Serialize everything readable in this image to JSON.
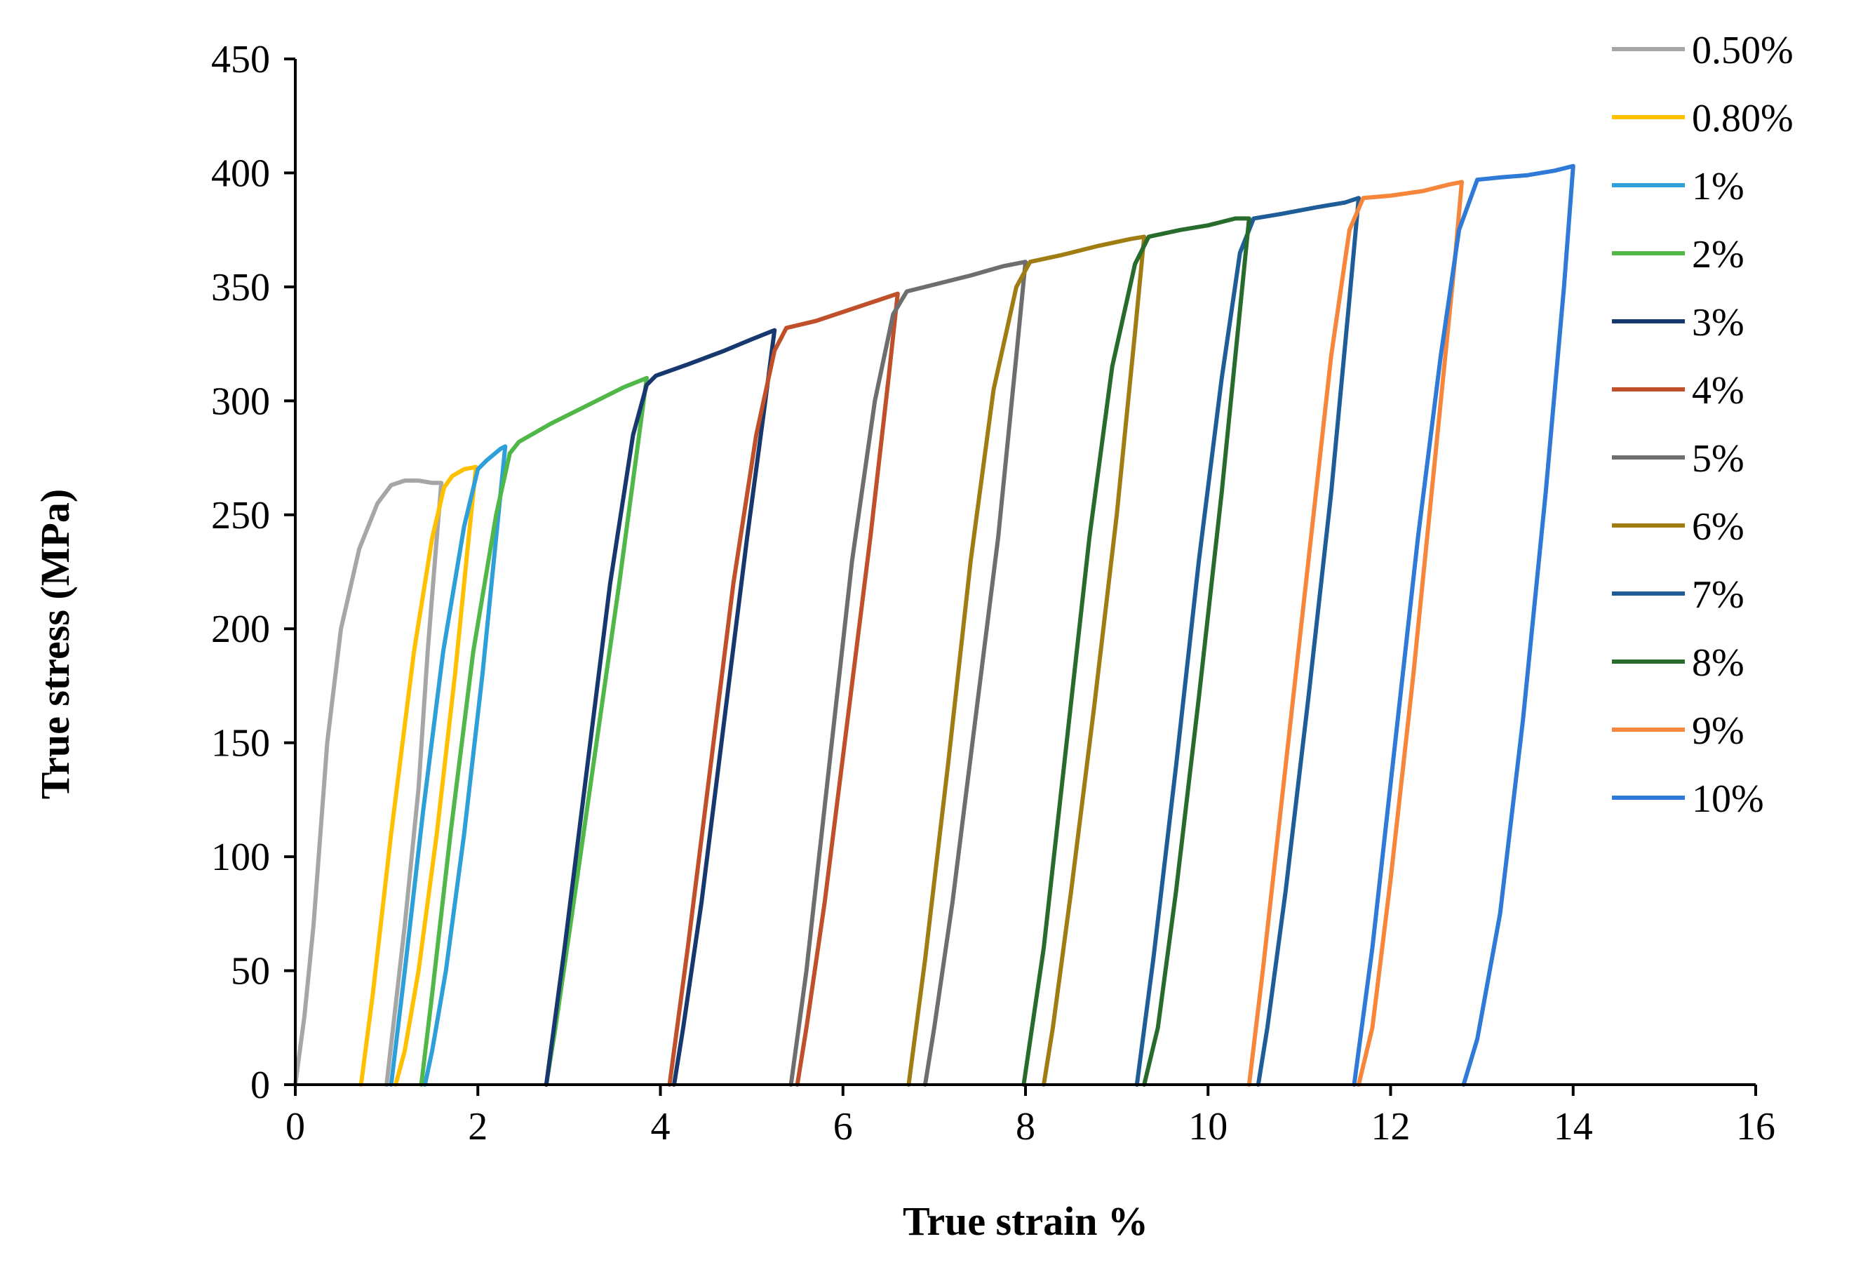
{
  "chart_data": {
    "type": "line",
    "title": "",
    "xlabel": "True strain %",
    "ylabel": "True stress (MPa)",
    "xlim": [
      0,
      16
    ],
    "ylim": [
      0,
      450
    ],
    "xticks": [
      "0",
      "2",
      "4",
      "6",
      "8",
      "10",
      "12",
      "14",
      "16"
    ],
    "yticks": [
      "0",
      "50",
      "100",
      "150",
      "200",
      "250",
      "300",
      "350",
      "400",
      "450"
    ],
    "grid": false,
    "legend_position": "right",
    "series": [
      {
        "name": "0.50%",
        "color": "#a6a6a6",
        "points": [
          [
            0.0,
            0
          ],
          [
            0.1,
            30
          ],
          [
            0.2,
            70
          ],
          [
            0.35,
            150
          ],
          [
            0.5,
            200
          ],
          [
            0.7,
            235
          ],
          [
            0.9,
            255
          ],
          [
            1.05,
            263
          ],
          [
            1.2,
            265
          ],
          [
            1.35,
            265
          ],
          [
            1.5,
            264
          ],
          [
            1.6,
            264
          ],
          [
            1.55,
            240
          ],
          [
            1.45,
            190
          ],
          [
            1.35,
            130
          ],
          [
            1.2,
            70
          ],
          [
            1.1,
            35
          ],
          [
            1.0,
            0
          ]
        ]
      },
      {
        "name": "0.80%",
        "color": "#ffc000",
        "points": [
          [
            0.72,
            0
          ],
          [
            0.85,
            40
          ],
          [
            1.05,
            110
          ],
          [
            1.3,
            190
          ],
          [
            1.5,
            240
          ],
          [
            1.63,
            262
          ],
          [
            1.72,
            267
          ],
          [
            1.85,
            270
          ],
          [
            1.98,
            271
          ],
          [
            1.9,
            240
          ],
          [
            1.75,
            180
          ],
          [
            1.55,
            110
          ],
          [
            1.35,
            50
          ],
          [
            1.2,
            15
          ],
          [
            1.1,
            0
          ]
        ]
      },
      {
        "name": "1%",
        "color": "#2e9fd8",
        "points": [
          [
            1.05,
            0
          ],
          [
            1.2,
            50
          ],
          [
            1.4,
            120
          ],
          [
            1.62,
            190
          ],
          [
            1.85,
            245
          ],
          [
            2.0,
            270
          ],
          [
            2.1,
            274
          ],
          [
            2.25,
            279
          ],
          [
            2.3,
            280
          ],
          [
            2.2,
            240
          ],
          [
            2.05,
            180
          ],
          [
            1.85,
            110
          ],
          [
            1.65,
            50
          ],
          [
            1.5,
            15
          ],
          [
            1.42,
            0
          ]
        ]
      },
      {
        "name": "2%",
        "color": "#4fb848",
        "points": [
          [
            1.38,
            0
          ],
          [
            1.5,
            40
          ],
          [
            1.7,
            110
          ],
          [
            1.95,
            190
          ],
          [
            2.2,
            250
          ],
          [
            2.35,
            277
          ],
          [
            2.45,
            282
          ],
          [
            2.8,
            290
          ],
          [
            3.2,
            298
          ],
          [
            3.6,
            306
          ],
          [
            3.85,
            310
          ],
          [
            3.75,
            280
          ],
          [
            3.55,
            220
          ],
          [
            3.3,
            150
          ],
          [
            3.05,
            80
          ],
          [
            2.85,
            25
          ],
          [
            2.75,
            0
          ]
        ]
      },
      {
        "name": "3%",
        "color": "#17386f",
        "points": [
          [
            2.75,
            0
          ],
          [
            2.95,
            60
          ],
          [
            3.2,
            140
          ],
          [
            3.45,
            220
          ],
          [
            3.7,
            285
          ],
          [
            3.85,
            307
          ],
          [
            3.95,
            311
          ],
          [
            4.3,
            316
          ],
          [
            4.7,
            322
          ],
          [
            5.0,
            327
          ],
          [
            5.25,
            331
          ],
          [
            5.15,
            300
          ],
          [
            4.95,
            240
          ],
          [
            4.7,
            160
          ],
          [
            4.45,
            80
          ],
          [
            4.25,
            25
          ],
          [
            4.15,
            0
          ]
        ]
      },
      {
        "name": "4%",
        "color": "#c0502a",
        "points": [
          [
            4.1,
            0
          ],
          [
            4.3,
            60
          ],
          [
            4.55,
            140
          ],
          [
            4.8,
            220
          ],
          [
            5.05,
            285
          ],
          [
            5.25,
            322
          ],
          [
            5.38,
            332
          ],
          [
            5.7,
            335
          ],
          [
            6.0,
            339
          ],
          [
            6.3,
            343
          ],
          [
            6.6,
            347
          ],
          [
            6.5,
            310
          ],
          [
            6.3,
            240
          ],
          [
            6.05,
            160
          ],
          [
            5.8,
            80
          ],
          [
            5.6,
            25
          ],
          [
            5.5,
            0
          ]
        ]
      },
      {
        "name": "5%",
        "color": "#6e6e6e",
        "points": [
          [
            5.43,
            0
          ],
          [
            5.6,
            50
          ],
          [
            5.85,
            140
          ],
          [
            6.1,
            230
          ],
          [
            6.35,
            300
          ],
          [
            6.55,
            338
          ],
          [
            6.7,
            348
          ],
          [
            7.0,
            351
          ],
          [
            7.4,
            355
          ],
          [
            7.75,
            359
          ],
          [
            8.0,
            361
          ],
          [
            7.9,
            320
          ],
          [
            7.7,
            240
          ],
          [
            7.45,
            160
          ],
          [
            7.2,
            80
          ],
          [
            7.0,
            25
          ],
          [
            6.9,
            0
          ]
        ]
      },
      {
        "name": "6%",
        "color": "#a07d12",
        "points": [
          [
            6.72,
            0
          ],
          [
            6.9,
            55
          ],
          [
            7.15,
            140
          ],
          [
            7.4,
            230
          ],
          [
            7.65,
            305
          ],
          [
            7.9,
            350
          ],
          [
            8.05,
            361
          ],
          [
            8.4,
            364
          ],
          [
            8.8,
            368
          ],
          [
            9.15,
            371
          ],
          [
            9.3,
            372
          ],
          [
            9.2,
            330
          ],
          [
            9.0,
            250
          ],
          [
            8.75,
            165
          ],
          [
            8.5,
            85
          ],
          [
            8.3,
            25
          ],
          [
            8.2,
            0
          ]
        ]
      },
      {
        "name": "7%",
        "color": "#1f5d99",
        "points": [
          [
            9.22,
            0
          ],
          [
            9.4,
            55
          ],
          [
            9.65,
            140
          ],
          [
            9.9,
            230
          ],
          [
            10.15,
            310
          ],
          [
            10.35,
            365
          ],
          [
            10.5,
            380
          ],
          [
            10.8,
            382
          ],
          [
            11.2,
            385
          ],
          [
            11.5,
            387
          ],
          [
            11.65,
            389
          ],
          [
            11.55,
            345
          ],
          [
            11.35,
            260
          ],
          [
            11.1,
            170
          ],
          [
            10.85,
            85
          ],
          [
            10.65,
            25
          ],
          [
            10.55,
            0
          ]
        ]
      },
      {
        "name": "8%",
        "color": "#276c2c",
        "points": [
          [
            7.98,
            0
          ],
          [
            8.2,
            60
          ],
          [
            8.45,
            150
          ],
          [
            8.7,
            240
          ],
          [
            8.95,
            315
          ],
          [
            9.2,
            360
          ],
          [
            9.35,
            372
          ],
          [
            9.7,
            375
          ],
          [
            10.0,
            377
          ],
          [
            10.3,
            380
          ],
          [
            10.45,
            380
          ],
          [
            10.35,
            340
          ],
          [
            10.15,
            260
          ],
          [
            9.9,
            170
          ],
          [
            9.65,
            85
          ],
          [
            9.45,
            25
          ],
          [
            9.3,
            0
          ]
        ]
      },
      {
        "name": "9%",
        "color": "#f5863c",
        "points": [
          [
            10.45,
            0
          ],
          [
            10.6,
            50
          ],
          [
            10.85,
            140
          ],
          [
            11.1,
            230
          ],
          [
            11.35,
            320
          ],
          [
            11.55,
            375
          ],
          [
            11.7,
            389
          ],
          [
            12.0,
            390
          ],
          [
            12.35,
            392
          ],
          [
            12.65,
            395
          ],
          [
            12.78,
            396
          ],
          [
            12.7,
            360
          ],
          [
            12.5,
            280
          ],
          [
            12.25,
            180
          ],
          [
            12.0,
            90
          ],
          [
            11.8,
            25
          ],
          [
            11.65,
            0
          ]
        ]
      },
      {
        "name": "10%",
        "color": "#2e7ad6",
        "points": [
          [
            11.6,
            0
          ],
          [
            11.8,
            60
          ],
          [
            12.05,
            150
          ],
          [
            12.3,
            240
          ],
          [
            12.55,
            320
          ],
          [
            12.75,
            375
          ],
          [
            12.95,
            397
          ],
          [
            13.2,
            398
          ],
          [
            13.5,
            399
          ],
          [
            13.8,
            401
          ],
          [
            14.0,
            403
          ],
          [
            13.9,
            350
          ],
          [
            13.7,
            260
          ],
          [
            13.45,
            160
          ],
          [
            13.2,
            75
          ],
          [
            12.95,
            20
          ],
          [
            12.8,
            0
          ]
        ]
      }
    ]
  }
}
